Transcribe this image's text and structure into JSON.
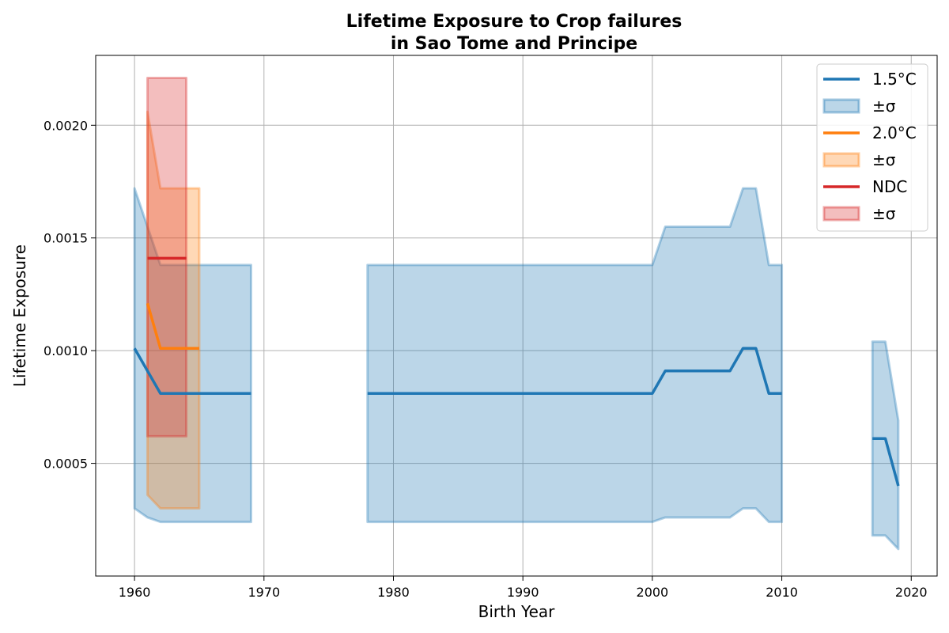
{
  "chart_data": {
    "type": "line",
    "title": [
      "Lifetime Exposure to Crop failures",
      "in Sao Tome and Principe"
    ],
    "xlabel": "Birth Year",
    "ylabel": "Lifetime Exposure",
    "xlim": [
      1957,
      2022
    ],
    "ylim": [
      0.0,
      0.00231
    ],
    "xticks": [
      1960,
      1970,
      1980,
      1990,
      2000,
      2010,
      2020
    ],
    "yticks": [
      0.0005,
      0.001,
      0.0015,
      0.002
    ],
    "ytick_labels": [
      "0.0005",
      "0.0010",
      "0.0015",
      "0.0020"
    ],
    "grid": true,
    "legend_position": "top-right",
    "series": [
      {
        "name": "1.5°C",
        "band_label": "±σ",
        "color": "#1f77b4",
        "segments": [
          {
            "x": [
              1960,
              1961,
              1962,
              1963,
              1964,
              1965,
              1966,
              1967,
              1968,
              1969
            ],
            "mean": [
              0.00101,
              0.00091,
              0.00081,
              0.00081,
              0.00081,
              0.00081,
              0.00081,
              0.00081,
              0.00081,
              0.00081
            ],
            "upper": [
              0.00172,
              0.00155,
              0.00138,
              0.00138,
              0.00138,
              0.00138,
              0.00138,
              0.00138,
              0.00138,
              0.00138
            ],
            "lower": [
              0.0003,
              0.00026,
              0.00024,
              0.00024,
              0.00024,
              0.00024,
              0.00024,
              0.00024,
              0.00024,
              0.00024
            ]
          },
          {
            "x": [
              1978,
              1979,
              1980,
              1981,
              1982,
              1983,
              1984,
              1985,
              1986,
              1987,
              1988,
              1989,
              1990,
              1991,
              1992,
              1993,
              1994,
              1995,
              1996,
              1997,
              1998,
              1999,
              2000,
              2001,
              2002,
              2003,
              2004,
              2005,
              2006,
              2007,
              2008,
              2009,
              2010
            ],
            "mean": [
              0.00081,
              0.00081,
              0.00081,
              0.00081,
              0.00081,
              0.00081,
              0.00081,
              0.00081,
              0.00081,
              0.00081,
              0.00081,
              0.00081,
              0.00081,
              0.00081,
              0.00081,
              0.00081,
              0.00081,
              0.00081,
              0.00081,
              0.00081,
              0.00081,
              0.00081,
              0.00081,
              0.00091,
              0.00091,
              0.00091,
              0.00091,
              0.00091,
              0.00091,
              0.00101,
              0.00101,
              0.00081,
              0.00081
            ],
            "upper": [
              0.00138,
              0.00138,
              0.00138,
              0.00138,
              0.00138,
              0.00138,
              0.00138,
              0.00138,
              0.00138,
              0.00138,
              0.00138,
              0.00138,
              0.00138,
              0.00138,
              0.00138,
              0.00138,
              0.00138,
              0.00138,
              0.00138,
              0.00138,
              0.00138,
              0.00138,
              0.00138,
              0.00155,
              0.00155,
              0.00155,
              0.00155,
              0.00155,
              0.00155,
              0.00172,
              0.00172,
              0.00138,
              0.00138
            ],
            "lower": [
              0.00024,
              0.00024,
              0.00024,
              0.00024,
              0.00024,
              0.00024,
              0.00024,
              0.00024,
              0.00024,
              0.00024,
              0.00024,
              0.00024,
              0.00024,
              0.00024,
              0.00024,
              0.00024,
              0.00024,
              0.00024,
              0.00024,
              0.00024,
              0.00024,
              0.00024,
              0.00024,
              0.00026,
              0.00026,
              0.00026,
              0.00026,
              0.00026,
              0.00026,
              0.0003,
              0.0003,
              0.00024,
              0.00024
            ]
          },
          {
            "x": [
              2017,
              2018,
              2019
            ],
            "mean": [
              0.00061,
              0.00061,
              0.0004
            ],
            "upper": [
              0.00104,
              0.00104,
              0.00069
            ],
            "lower": [
              0.00018,
              0.00018,
              0.00012
            ]
          }
        ]
      },
      {
        "name": "2.0°C",
        "band_label": "±σ",
        "color": "#ff7f0e",
        "segments": [
          {
            "x": [
              1961,
              1962,
              1963,
              1964,
              1965
            ],
            "mean": [
              0.00121,
              0.00101,
              0.00101,
              0.00101,
              0.00101
            ],
            "upper": [
              0.00206,
              0.00172,
              0.00172,
              0.00172,
              0.00172
            ],
            "lower": [
              0.00036,
              0.0003,
              0.0003,
              0.0003,
              0.0003
            ]
          }
        ]
      },
      {
        "name": "NDC",
        "band_label": "±σ",
        "color": "#d62728",
        "segments": [
          {
            "x": [
              1961,
              1962,
              1963,
              1964
            ],
            "mean": [
              0.00141,
              0.00141,
              0.00141,
              0.00141
            ],
            "upper": [
              0.00221,
              0.00221,
              0.00221,
              0.00221
            ],
            "lower": [
              0.00062,
              0.00062,
              0.00062,
              0.00062
            ]
          }
        ]
      }
    ]
  }
}
